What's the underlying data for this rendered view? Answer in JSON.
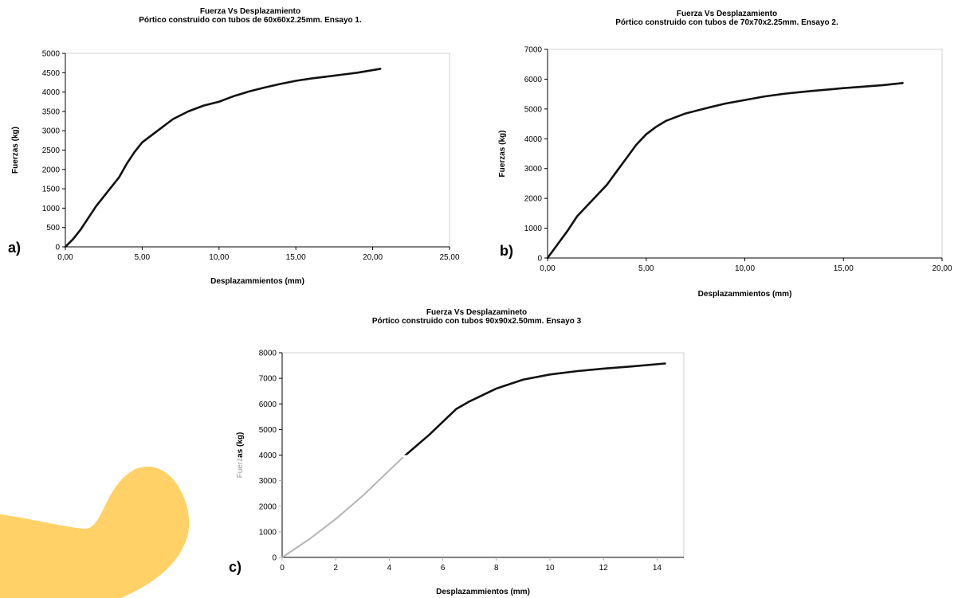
{
  "figure": {
    "accent_color": "#ffd166",
    "line_color": "#111111",
    "faded_line_color": "#b5b5b5"
  },
  "chart_data": [
    {
      "type": "line",
      "panel_label": "a)",
      "title_lines": [
        "Fuerza  Vs Desplazamiento",
        "Pórtico construido con tubos de 60x60x2.25mm. Ensayo 1."
      ],
      "xlabel": "Desplazammientos (mm)",
      "ylabel": "Fuerzas (kg)",
      "xlim": [
        0,
        25
      ],
      "ylim": [
        0,
        5000
      ],
      "x_ticks": [
        0,
        5,
        10,
        15,
        20,
        25
      ],
      "x_tick_labels": [
        "0,00",
        "5,00",
        "10,00",
        "15,00",
        "20,00",
        "25,00"
      ],
      "y_ticks": [
        0,
        500,
        1000,
        1500,
        2000,
        2500,
        3000,
        3500,
        4000,
        4500,
        5000
      ],
      "y_tick_labels": [
        "0",
        "500",
        "1000",
        "1500",
        "2000",
        "2500",
        "3000",
        "3500",
        "4000",
        "4500",
        "5000"
      ],
      "grid": false,
      "series": [
        {
          "x": [
            0,
            0.5,
            1,
            1.5,
            2,
            2.5,
            3,
            3.5,
            4,
            4.5,
            5,
            6,
            7,
            8,
            9,
            10,
            11,
            12,
            13,
            14,
            15,
            16,
            17,
            18,
            19,
            20.5
          ],
          "y": [
            0,
            200,
            450,
            750,
            1050,
            1300,
            1550,
            1800,
            2150,
            2450,
            2700,
            3000,
            3300,
            3500,
            3650,
            3750,
            3900,
            4020,
            4120,
            4210,
            4290,
            4350,
            4400,
            4450,
            4500,
            4600
          ]
        }
      ]
    },
    {
      "type": "line",
      "panel_label": "b)",
      "title_lines": [
        "Fuerza Vs Desplazamiento",
        "Pórtico construido con tubos de 70x70x2.25mm. Ensayo 2."
      ],
      "xlabel": "Desplazammientos (mm)",
      "ylabel": "Fuerzas (kg)",
      "xlim": [
        0,
        20
      ],
      "ylim": [
        0,
        7000
      ],
      "x_ticks": [
        0,
        5,
        10,
        15,
        20
      ],
      "x_tick_labels": [
        "0,00",
        "5,00",
        "10,00",
        "15,00",
        "20,00"
      ],
      "y_ticks": [
        0,
        1000,
        2000,
        3000,
        4000,
        5000,
        6000,
        7000
      ],
      "y_tick_labels": [
        "0",
        "1000",
        "2000",
        "3000",
        "4000",
        "5000",
        "6000",
        "7000"
      ],
      "grid": false,
      "series": [
        {
          "x": [
            0,
            0.5,
            1,
            1.5,
            2,
            2.5,
            3,
            3.5,
            4,
            4.5,
            5,
            5.5,
            6,
            7,
            8,
            9,
            10,
            11,
            12,
            13,
            14,
            15,
            16,
            17,
            18
          ],
          "y": [
            0,
            450,
            900,
            1400,
            1750,
            2100,
            2450,
            2900,
            3350,
            3800,
            4150,
            4400,
            4600,
            4850,
            5020,
            5180,
            5300,
            5420,
            5510,
            5580,
            5640,
            5700,
            5750,
            5800,
            5870
          ]
        }
      ]
    },
    {
      "type": "line",
      "panel_label": "c)",
      "title_lines": [
        "Fuerza Vs Desplazamineto",
        "Pórtico construido con tubos 90x90x2.50mm. Ensayo 3"
      ],
      "xlabel": "Desplazammientos (mm)",
      "ylabel": "Fuerzas (kg)",
      "xlim": [
        0,
        15
      ],
      "ylim": [
        0,
        8000
      ],
      "x_ticks": [
        0,
        2,
        4,
        6,
        8,
        10,
        12,
        14
      ],
      "x_tick_labels": [
        "0",
        "2",
        "4",
        "6",
        "8",
        "10",
        "12",
        "14"
      ],
      "y_ticks": [
        0,
        1000,
        2000,
        3000,
        4000,
        5000,
        6000,
        7000,
        8000
      ],
      "y_tick_labels": [
        "0",
        "1000",
        "2000",
        "3000",
        "4000",
        "5000",
        "6000",
        "7000",
        "8000"
      ],
      "grid": false,
      "series": [
        {
          "x": [
            0,
            1,
            2,
            3,
            4,
            4.5,
            5,
            5.5,
            6,
            6.5,
            7,
            8,
            9,
            10,
            11,
            12,
            13,
            14.3
          ],
          "y": [
            0,
            700,
            1500,
            2400,
            3400,
            3900,
            4350,
            4800,
            5300,
            5800,
            6100,
            6600,
            6950,
            7150,
            7280,
            7380,
            7460,
            7580
          ]
        }
      ]
    }
  ]
}
